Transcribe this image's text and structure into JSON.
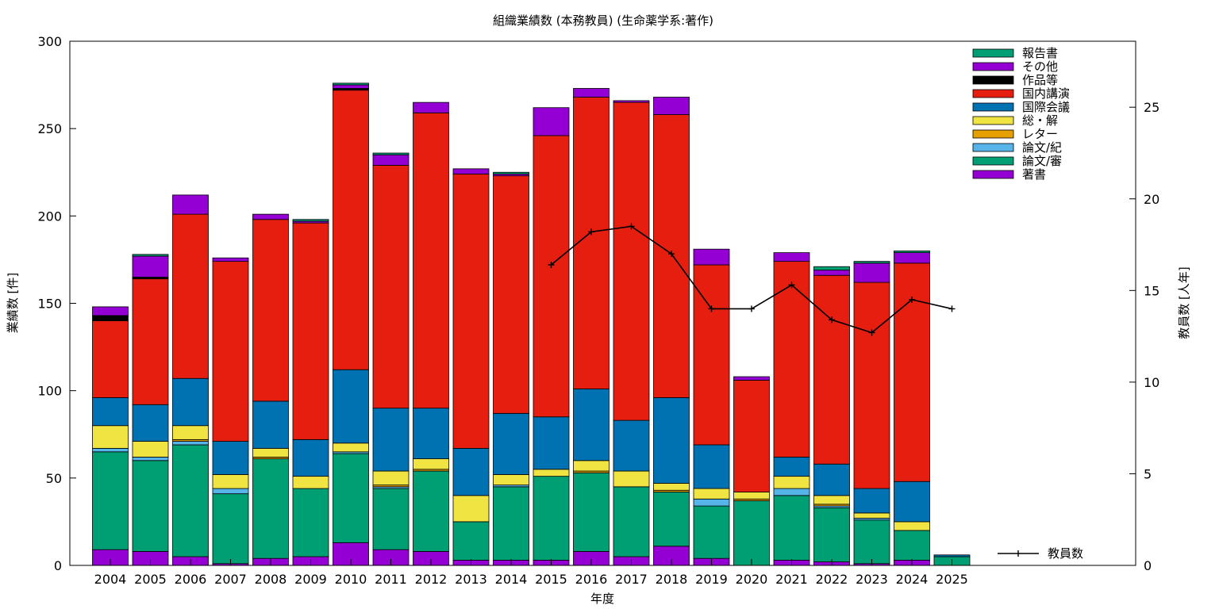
{
  "chart_data": {
    "type": "bar",
    "stacked": true,
    "title": "組織業績数 (本務教員) (生命薬学系:著作)",
    "xlabel": "年度",
    "ylabel": "業績数 [件]",
    "y2label": "教員数 [人年]",
    "ylim": [
      0,
      300
    ],
    "y2lim": [
      0,
      28.6
    ],
    "yticks": [
      0,
      50,
      100,
      150,
      200,
      250,
      300
    ],
    "y2ticks": [
      0,
      5,
      10,
      15,
      20,
      25
    ],
    "grid": false,
    "legend_position": "top-right",
    "categories": [
      "2004",
      "2005",
      "2006",
      "2007",
      "2008",
      "2009",
      "2010",
      "2011",
      "2012",
      "2013",
      "2014",
      "2015",
      "2016",
      "2017",
      "2018",
      "2019",
      "2020",
      "2021",
      "2022",
      "2023",
      "2024",
      "2025"
    ],
    "series": [
      {
        "name": "著書",
        "color": "#9400d3",
        "values": [
          9,
          8,
          5,
          1,
          4,
          5,
          13,
          9,
          8,
          3,
          3,
          3,
          8,
          5,
          11,
          4,
          0,
          3,
          2,
          1,
          3,
          0
        ]
      },
      {
        "name": "論文/審",
        "color": "#009e73",
        "values": [
          56,
          52,
          64,
          40,
          57,
          39,
          51,
          35,
          46,
          22,
          42,
          48,
          45,
          40,
          31,
          30,
          37,
          37,
          31,
          25,
          17,
          5
        ]
      },
      {
        "name": "論文/紀",
        "color": "#56b4e9",
        "values": [
          2,
          2,
          2,
          3,
          0,
          0,
          1,
          1,
          0,
          0,
          1,
          0,
          0,
          0,
          0,
          4,
          0,
          4,
          1,
          1,
          0,
          0
        ]
      },
      {
        "name": "レター",
        "color": "#e69f00",
        "values": [
          0,
          0,
          1,
          0,
          1,
          0,
          0,
          1,
          1,
          0,
          0,
          0,
          1,
          0,
          1,
          0,
          1,
          0,
          1,
          0,
          0,
          0
        ]
      },
      {
        "name": "総・解",
        "color": "#f0e442",
        "values": [
          13,
          9,
          8,
          8,
          5,
          7,
          5,
          8,
          6,
          15,
          6,
          4,
          6,
          9,
          4,
          6,
          4,
          7,
          5,
          3,
          5,
          0
        ]
      },
      {
        "name": "国際会議",
        "color": "#0072b2",
        "values": [
          16,
          21,
          27,
          19,
          27,
          21,
          42,
          36,
          29,
          27,
          35,
          30,
          41,
          29,
          49,
          25,
          0,
          11,
          18,
          14,
          23,
          1
        ]
      },
      {
        "name": "国内講演",
        "color": "#e51e10",
        "values": [
          44,
          72,
          94,
          103,
          104,
          124,
          160,
          139,
          169,
          157,
          136,
          161,
          167,
          182,
          162,
          103,
          64,
          112,
          108,
          118,
          125,
          0
        ]
      },
      {
        "name": "作品等",
        "color": "#000000",
        "values": [
          3,
          1,
          0,
          0,
          0,
          0,
          1,
          0,
          0,
          0,
          0,
          0,
          0,
          0,
          0,
          0,
          0,
          0,
          0,
          0,
          0,
          0
        ]
      },
      {
        "name": "その他",
        "color": "#9400d3",
        "values": [
          5,
          12,
          11,
          2,
          3,
          1,
          2,
          6,
          6,
          3,
          1,
          16,
          5,
          1,
          10,
          9,
          2,
          5,
          3,
          11,
          6,
          0
        ]
      },
      {
        "name": "報告書",
        "color": "#009e73",
        "values": [
          0,
          1,
          0,
          0,
          0,
          1,
          1,
          1,
          0,
          0,
          1,
          0,
          0,
          0,
          0,
          0,
          0,
          0,
          2,
          1,
          1,
          0
        ]
      }
    ],
    "legend_order": [
      "報告書",
      "その他",
      "作品等",
      "国内講演",
      "国際会議",
      "総・解",
      "レター",
      "論文/紀",
      "論文/審",
      "著書"
    ],
    "line_series": {
      "name": "教員数",
      "axis": "y2",
      "color": "#000000",
      "categories": [
        "2015",
        "2016",
        "2017",
        "2018",
        "2019",
        "2020",
        "2021",
        "2022",
        "2023",
        "2024",
        "2025"
      ],
      "values": [
        16.4,
        18.2,
        18.5,
        17.0,
        14.0,
        14.0,
        15.3,
        13.4,
        12.7,
        14.5,
        14.0
      ]
    }
  }
}
